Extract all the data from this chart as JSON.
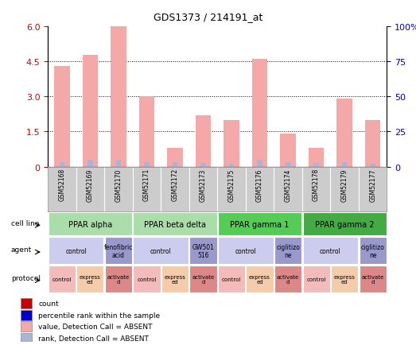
{
  "title": "GDS1373 / 214191_at",
  "samples": [
    "GSM52168",
    "GSM52169",
    "GSM52170",
    "GSM52171",
    "GSM52172",
    "GSM52173",
    "GSM52175",
    "GSM52176",
    "GSM52174",
    "GSM52178",
    "GSM52179",
    "GSM52177"
  ],
  "bar_values": [
    4.3,
    4.8,
    6.0,
    3.0,
    0.8,
    2.2,
    2.0,
    4.6,
    1.4,
    0.8,
    2.9,
    2.0
  ],
  "rank_values": [
    0.18,
    0.28,
    0.28,
    0.18,
    0.18,
    0.15,
    0.13,
    0.28,
    0.18,
    0.15,
    0.18,
    0.13
  ],
  "bar_color": "#F4A8A8",
  "rank_color": "#A8B4D8",
  "ylim_left": [
    0,
    6
  ],
  "ylim_right": [
    0,
    100
  ],
  "yticks_left": [
    0,
    1.5,
    3.0,
    4.5,
    6.0
  ],
  "yticks_right": [
    0,
    25,
    50,
    75,
    100
  ],
  "cell_lines": [
    {
      "label": "PPAR alpha",
      "span": [
        0,
        3
      ],
      "color": "#AADDAA"
    },
    {
      "label": "PPAR beta delta",
      "span": [
        3,
        6
      ],
      "color": "#AADDAA"
    },
    {
      "label": "PPAR gamma 1",
      "span": [
        6,
        9
      ],
      "color": "#55CC55"
    },
    {
      "label": "PPAR gamma 2",
      "span": [
        9,
        12
      ],
      "color": "#44AA44"
    }
  ],
  "agents": [
    {
      "label": "control",
      "span": [
        0,
        2
      ],
      "color": "#CCCCEE"
    },
    {
      "label": "fenofibric\nacid",
      "span": [
        2,
        3
      ],
      "color": "#9999CC"
    },
    {
      "label": "control",
      "span": [
        3,
        5
      ],
      "color": "#CCCCEE"
    },
    {
      "label": "GW501\n516",
      "span": [
        5,
        6
      ],
      "color": "#9999CC"
    },
    {
      "label": "control",
      "span": [
        6,
        8
      ],
      "color": "#CCCCEE"
    },
    {
      "label": "ciglitizo\nne",
      "span": [
        8,
        9
      ],
      "color": "#9999CC"
    },
    {
      "label": "control",
      "span": [
        9,
        11
      ],
      "color": "#CCCCEE"
    },
    {
      "label": "ciglitizo\nne",
      "span": [
        11,
        12
      ],
      "color": "#9999CC"
    }
  ],
  "protocols": [
    {
      "label": "control",
      "span": [
        0,
        1
      ],
      "color": "#F4BBBB"
    },
    {
      "label": "express\ned",
      "span": [
        1,
        2
      ],
      "color": "#F4CCAA"
    },
    {
      "label": "activate\nd",
      "span": [
        2,
        3
      ],
      "color": "#DD8888"
    },
    {
      "label": "control",
      "span": [
        3,
        4
      ],
      "color": "#F4BBBB"
    },
    {
      "label": "express\ned",
      "span": [
        4,
        5
      ],
      "color": "#F4CCAA"
    },
    {
      "label": "activate\nd",
      "span": [
        5,
        6
      ],
      "color": "#DD8888"
    },
    {
      "label": "control",
      "span": [
        6,
        7
      ],
      "color": "#F4BBBB"
    },
    {
      "label": "express\ned",
      "span": [
        7,
        8
      ],
      "color": "#F4CCAA"
    },
    {
      "label": "activate\nd",
      "span": [
        8,
        9
      ],
      "color": "#DD8888"
    },
    {
      "label": "control",
      "span": [
        9,
        10
      ],
      "color": "#F4BBBB"
    },
    {
      "label": "express\ned",
      "span": [
        10,
        11
      ],
      "color": "#F4CCAA"
    },
    {
      "label": "activate\nd",
      "span": [
        11,
        12
      ],
      "color": "#DD8888"
    }
  ],
  "row_labels": [
    "cell line",
    "agent",
    "protocol"
  ],
  "legend_items": [
    {
      "label": "count",
      "color": "#CC0000"
    },
    {
      "label": "percentile rank within the sample",
      "color": "#0000CC"
    },
    {
      "label": "value, Detection Call = ABSENT",
      "color": "#F4A8A8"
    },
    {
      "label": "rank, Detection Call = ABSENT",
      "color": "#A8B4D8"
    }
  ],
  "sample_bg_color": "#CCCCCC",
  "left_axis_color": "#CC0000",
  "right_axis_color": "#0000CC",
  "fig_width": 5.23,
  "fig_height": 4.35,
  "dpi": 100
}
